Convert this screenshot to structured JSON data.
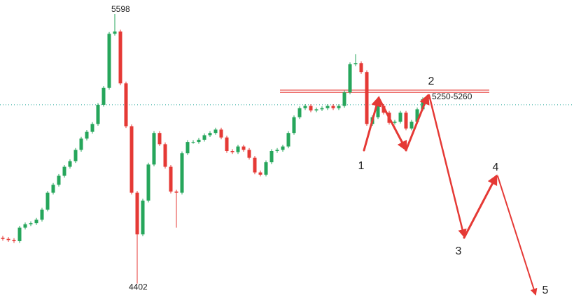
{
  "chart_data": {
    "type": "candlestick",
    "up_color": "#26a65b",
    "down_color": "#e53935",
    "ylim": [
      4320,
      5660
    ],
    "open": [
      4605,
      4600,
      4595,
      4590,
      4650,
      4665,
      4670,
      4685,
      4730,
      4805,
      4840,
      4880,
      4920,
      4945,
      4995,
      5045,
      5075,
      5110,
      5195,
      5270,
      5510,
      5520,
      5290,
      5100,
      4805,
      4620,
      4770,
      4930,
      5070,
      5020,
      4920,
      4810,
      4805,
      4980,
      5030,
      5030,
      5040,
      5060,
      5070,
      5085,
      5050,
      4990,
      4985,
      5010,
      4995,
      4960,
      4895,
      4885,
      4940,
      4990,
      4995,
      5010,
      5070,
      5140,
      5180,
      5190,
      5170,
      5175,
      5180,
      5190,
      5180,
      5190,
      5250,
      5375,
      5380,
      5340,
      5110,
      5140,
      5190,
      5160,
      5115,
      5120,
      5160,
      5090,
      5120,
      5175,
      5220
    ],
    "high": [
      4613,
      4608,
      4603,
      4658,
      4673,
      4678,
      4693,
      4738,
      4813,
      4848,
      4888,
      4928,
      4953,
      5003,
      5053,
      5083,
      5118,
      5203,
      5278,
      5518,
      5598,
      5528,
      5298,
      5108,
      4813,
      4778,
      4938,
      5078,
      5078,
      5028,
      4928,
      4818,
      4988,
      5038,
      5038,
      5048,
      5068,
      5078,
      5093,
      5093,
      5058,
      4998,
      5018,
      5018,
      5003,
      4968,
      4903,
      4948,
      4998,
      5003,
      5018,
      5078,
      5148,
      5188,
      5198,
      5198,
      5183,
      5188,
      5198,
      5198,
      5198,
      5258,
      5383,
      5420,
      5388,
      5348,
      5148,
      5198,
      5198,
      5168,
      5128,
      5168,
      5168,
      5128,
      5183,
      5228,
      5233
    ],
    "low": [
      4592,
      4587,
      4582,
      4582,
      4642,
      4657,
      4662,
      4677,
      4722,
      4797,
      4832,
      4872,
      4912,
      4937,
      4987,
      5037,
      5067,
      5102,
      5187,
      5262,
      5502,
      5282,
      5092,
      4797,
      4402,
      4612,
      4762,
      4922,
      5012,
      4912,
      4802,
      4650,
      4797,
      4972,
      5022,
      5022,
      5032,
      5052,
      5062,
      5042,
      4982,
      4977,
      4977,
      4987,
      4952,
      4887,
      4877,
      4877,
      4932,
      4982,
      4987,
      5002,
      5062,
      5132,
      5172,
      5162,
      5162,
      5167,
      5172,
      5172,
      5172,
      5182,
      5242,
      5367,
      5332,
      5102,
      5102,
      5132,
      5152,
      5107,
      5107,
      5112,
      5082,
      5082,
      5112,
      5167,
      5212
    ],
    "close": [
      4600,
      4595,
      4590,
      4650,
      4665,
      4670,
      4685,
      4730,
      4805,
      4840,
      4880,
      4920,
      4945,
      4995,
      5045,
      5075,
      5110,
      5195,
      5270,
      5510,
      5520,
      5290,
      5100,
      4805,
      4620,
      4770,
      4930,
      5070,
      5020,
      4920,
      4810,
      4805,
      4980,
      5030,
      5030,
      5040,
      5060,
      5070,
      5085,
      5050,
      4990,
      4985,
      5010,
      4995,
      4960,
      4895,
      4885,
      4940,
      4990,
      4995,
      5010,
      5070,
      5140,
      5180,
      5190,
      5170,
      5175,
      5180,
      5190,
      5180,
      5190,
      5250,
      5375,
      5380,
      5340,
      5110,
      5140,
      5190,
      5160,
      5115,
      5120,
      5160,
      5090,
      5120,
      5175,
      5220,
      5225
    ],
    "price_line": 5195,
    "price_line_color": "#26a69a",
    "zone": {
      "label": "5250-5260",
      "range": [
        5250,
        5260
      ],
      "color": "#e53935"
    },
    "wave_labels": [
      "1",
      "2",
      "3",
      "4",
      "5"
    ]
  }
}
